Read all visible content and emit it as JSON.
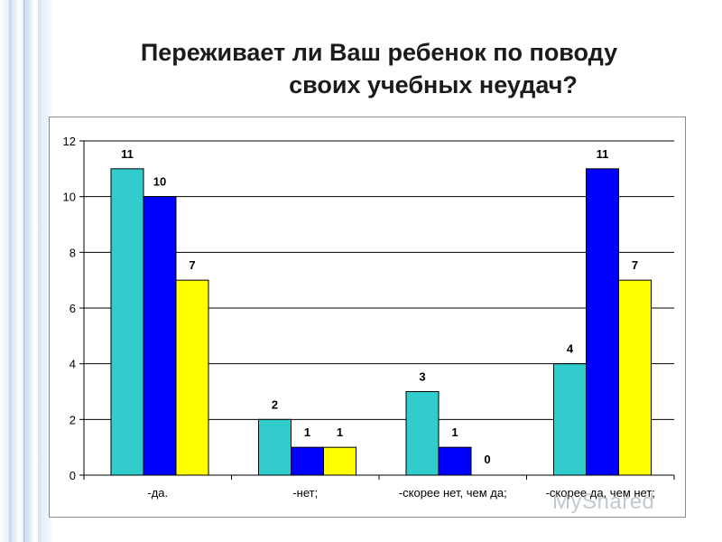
{
  "title_line1": "Переживает ли Ваш ребенок по поводу",
  "title_line2": "своих учебных неудач?",
  "colors": {
    "series1": "#33cccc",
    "series2": "#0000ff",
    "series3": "#ffff00"
  },
  "chart_data": {
    "type": "bar",
    "categories": [
      "-да.",
      "-нет;",
      "-скорее нет, чем да;",
      "-скорее да, чем нет;"
    ],
    "series": [
      {
        "values": [
          11,
          2,
          3,
          4
        ]
      },
      {
        "values": [
          10,
          1,
          1,
          11
        ]
      },
      {
        "values": [
          7,
          1,
          0,
          7
        ]
      }
    ],
    "ylim": [
      0,
      12
    ],
    "yticks": [
      0,
      2,
      4,
      6,
      8,
      10,
      12
    ],
    "grid": true,
    "legend": "none",
    "title": "",
    "xlabel": "",
    "ylabel": ""
  },
  "watermark": "MyShared"
}
